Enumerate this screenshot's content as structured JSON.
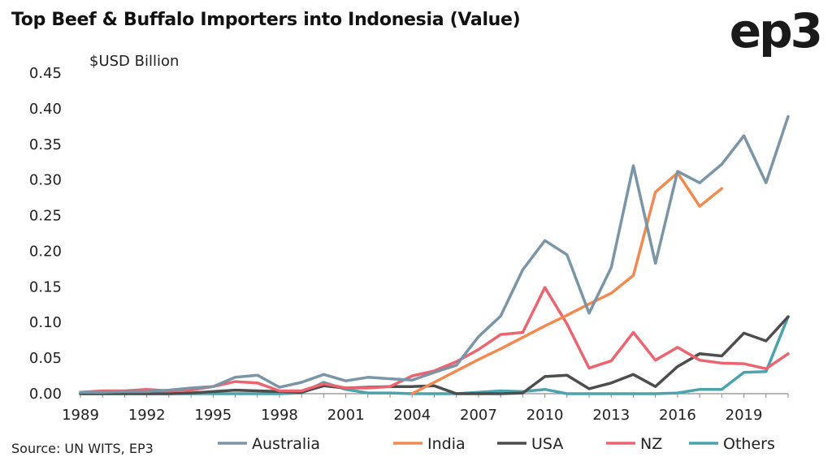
{
  "header": {
    "title": "Top Beef & Buffalo Importers into Indonesia (Value)",
    "logo_text": "ep3"
  },
  "footer": {
    "source": "Source: UN WITS, EP3"
  },
  "chart_data": {
    "type": "line",
    "title": "Top Beef & Buffalo Importers into Indonesia (Value)",
    "ylabel": "$USD Billion",
    "xlabel": "",
    "ylim": [
      0,
      0.45
    ],
    "xlim": [
      1989,
      2021
    ],
    "yticks": [
      "0.00",
      "0.05",
      "0.10",
      "0.15",
      "0.20",
      "0.25",
      "0.30",
      "0.35",
      "0.40",
      "0.45"
    ],
    "xticks": [
      "1989",
      "1992",
      "1995",
      "1998",
      "2001",
      "2004",
      "2007",
      "2010",
      "2013",
      "2016",
      "2019"
    ],
    "grid": false,
    "legend_position": "bottom",
    "x": [
      1989,
      1990,
      1991,
      1992,
      1993,
      1994,
      1995,
      1996,
      1997,
      1998,
      1999,
      2000,
      2001,
      2002,
      2003,
      2004,
      2005,
      2006,
      2007,
      2008,
      2009,
      2010,
      2011,
      2012,
      2013,
      2014,
      2015,
      2016,
      2017,
      2018,
      2019,
      2020,
      2021
    ],
    "series": [
      {
        "name": "Australia",
        "color": "#7a95a6",
        "values": [
          0.002,
          0.002,
          0.003,
          0.003,
          0.005,
          0.008,
          0.01,
          0.023,
          0.026,
          0.009,
          0.016,
          0.027,
          0.018,
          0.023,
          0.021,
          0.019,
          0.03,
          0.04,
          0.08,
          0.109,
          0.174,
          0.215,
          0.195,
          0.113,
          0.177,
          0.32,
          0.183,
          0.312,
          0.296,
          0.322,
          0.362,
          0.296,
          0.389
        ]
      },
      {
        "name": "India",
        "color": "#f08a50",
        "values": [
          null,
          null,
          null,
          null,
          null,
          null,
          null,
          null,
          null,
          null,
          null,
          null,
          null,
          null,
          null,
          0.0,
          0.016,
          0.032,
          0.048,
          0.063,
          0.079,
          0.095,
          0.11,
          0.126,
          0.141,
          0.166,
          0.283,
          0.31,
          0.263,
          0.288,
          null,
          null,
          null
        ]
      },
      {
        "name": "USA",
        "color": "#4d4d4d",
        "values": [
          0.0,
          0.0,
          0.0,
          0.0,
          0.0,
          0.001,
          0.003,
          0.005,
          0.004,
          0.003,
          0.002,
          0.011,
          0.008,
          0.009,
          0.01,
          0.01,
          0.011,
          0.0,
          0.0,
          0.0,
          0.001,
          0.024,
          0.026,
          0.007,
          0.015,
          0.027,
          0.01,
          0.038,
          0.056,
          0.053,
          0.085,
          0.074,
          0.108
        ]
      },
      {
        "name": "NZ",
        "color": "#ec6470",
        "values": [
          0.002,
          0.004,
          0.004,
          0.006,
          0.004,
          0.005,
          0.01,
          0.017,
          0.015,
          0.004,
          0.004,
          0.014,
          0.008,
          0.008,
          0.01,
          0.025,
          0.032,
          0.045,
          0.062,
          0.083,
          0.086,
          0.149,
          0.098,
          0.036,
          0.046,
          0.086,
          0.047,
          0.065,
          0.047,
          0.043,
          0.042,
          0.035,
          0.056
        ]
      },
      {
        "name": "Others",
        "color": "#4aa3ad",
        "values": [
          0.0,
          0.0,
          0.0,
          0.0,
          0.0,
          0.0,
          0.0,
          0.0,
          0.0,
          0.0,
          0.001,
          0.016,
          0.006,
          0.001,
          0.001,
          0.0,
          0.0,
          0.0,
          0.002,
          0.004,
          0.003,
          0.006,
          0.0,
          0.0,
          0.0,
          0.0,
          0.0,
          0.001,
          0.006,
          0.006,
          0.03,
          0.031,
          0.108
        ]
      }
    ]
  }
}
